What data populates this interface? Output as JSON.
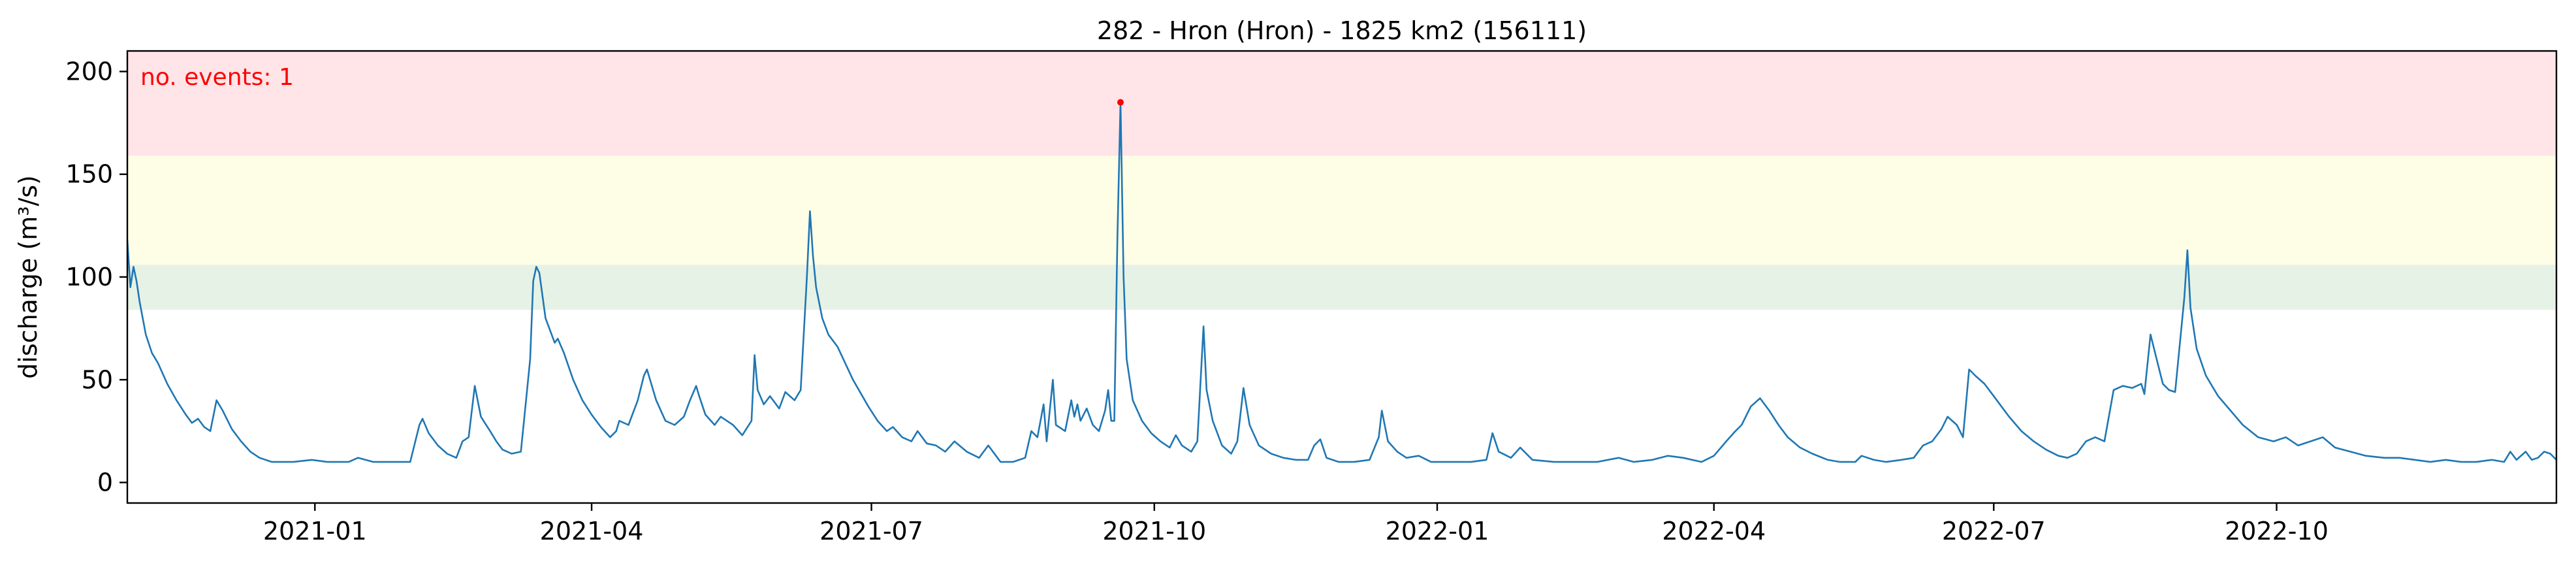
{
  "chart_data": {
    "type": "line",
    "title": "282 - Hron (Hron) - 1825 km2 (156111)",
    "xlabel": "",
    "ylabel": "discharge (m³/s)",
    "xlim": [
      "2020-11-01",
      "2022-12-31"
    ],
    "ylim": [
      -10,
      210
    ],
    "grid": false,
    "legend": "none",
    "x_ticks": [
      "2021-01",
      "2021-04",
      "2021-07",
      "2021-10",
      "2022-01",
      "2022-04",
      "2022-07",
      "2022-10"
    ],
    "y_ticks": [
      0,
      50,
      100,
      150,
      200
    ],
    "annotation": "no. events: 1",
    "threshold_bands": [
      {
        "from": 84,
        "to": 106,
        "color": "#e6f2e6"
      },
      {
        "from": 106,
        "to": 159,
        "color": "#fefee6"
      },
      {
        "from": 159,
        "to": 210,
        "color": "#ffe4e8"
      }
    ],
    "series": [
      {
        "color": "#1f77b4",
        "points": [
          [
            "2020-11-01",
            118
          ],
          [
            "2020-11-02",
            95
          ],
          [
            "2020-11-03",
            105
          ],
          [
            "2020-11-04",
            98
          ],
          [
            "2020-11-05",
            88
          ],
          [
            "2020-11-07",
            72
          ],
          [
            "2020-11-09",
            63
          ],
          [
            "2020-11-11",
            58
          ],
          [
            "2020-11-14",
            48
          ],
          [
            "2020-11-17",
            40
          ],
          [
            "2020-11-20",
            33
          ],
          [
            "2020-11-22",
            29
          ],
          [
            "2020-11-24",
            31
          ],
          [
            "2020-11-26",
            27
          ],
          [
            "2020-11-28",
            25
          ],
          [
            "2020-11-30",
            40
          ],
          [
            "2020-12-02",
            35
          ],
          [
            "2020-12-05",
            26
          ],
          [
            "2020-12-08",
            20
          ],
          [
            "2020-12-11",
            15
          ],
          [
            "2020-12-14",
            12
          ],
          [
            "2020-12-18",
            10
          ],
          [
            "2020-12-25",
            10
          ],
          [
            "2020-12-31",
            11
          ],
          [
            "2021-01-05",
            10
          ],
          [
            "2021-01-12",
            10
          ],
          [
            "2021-01-15",
            12
          ],
          [
            "2021-01-20",
            10
          ],
          [
            "2021-01-28",
            10
          ],
          [
            "2021-02-01",
            10
          ],
          [
            "2021-02-04",
            28
          ],
          [
            "2021-02-05",
            31
          ],
          [
            "2021-02-07",
            24
          ],
          [
            "2021-02-10",
            18
          ],
          [
            "2021-02-13",
            14
          ],
          [
            "2021-02-16",
            12
          ],
          [
            "2021-02-18",
            20
          ],
          [
            "2021-02-20",
            22
          ],
          [
            "2021-02-22",
            47
          ],
          [
            "2021-02-24",
            32
          ],
          [
            "2021-02-27",
            25
          ],
          [
            "2021-03-01",
            20
          ],
          [
            "2021-03-03",
            16
          ],
          [
            "2021-03-06",
            14
          ],
          [
            "2021-03-09",
            15
          ],
          [
            "2021-03-11",
            45
          ],
          [
            "2021-03-12",
            60
          ],
          [
            "2021-03-13",
            98
          ],
          [
            "2021-03-14",
            105
          ],
          [
            "2021-03-15",
            102
          ],
          [
            "2021-03-17",
            80
          ],
          [
            "2021-03-20",
            68
          ],
          [
            "2021-03-21",
            70
          ],
          [
            "2021-03-23",
            63
          ],
          [
            "2021-03-26",
            50
          ],
          [
            "2021-03-29",
            40
          ],
          [
            "2021-04-01",
            33
          ],
          [
            "2021-04-04",
            27
          ],
          [
            "2021-04-07",
            22
          ],
          [
            "2021-04-09",
            25
          ],
          [
            "2021-04-10",
            30
          ],
          [
            "2021-04-13",
            28
          ],
          [
            "2021-04-16",
            40
          ],
          [
            "2021-04-18",
            52
          ],
          [
            "2021-04-19",
            55
          ],
          [
            "2021-04-22",
            40
          ],
          [
            "2021-04-25",
            30
          ],
          [
            "2021-04-28",
            28
          ],
          [
            "2021-05-01",
            32
          ],
          [
            "2021-05-03",
            40
          ],
          [
            "2021-05-05",
            47
          ],
          [
            "2021-05-06",
            42
          ],
          [
            "2021-05-08",
            33
          ],
          [
            "2021-05-11",
            28
          ],
          [
            "2021-05-13",
            32
          ],
          [
            "2021-05-15",
            30
          ],
          [
            "2021-05-17",
            28
          ],
          [
            "2021-05-20",
            23
          ],
          [
            "2021-05-23",
            30
          ],
          [
            "2021-05-24",
            62
          ],
          [
            "2021-05-25",
            45
          ],
          [
            "2021-05-27",
            38
          ],
          [
            "2021-05-29",
            42
          ],
          [
            "2021-06-01",
            36
          ],
          [
            "2021-06-03",
            44
          ],
          [
            "2021-06-06",
            40
          ],
          [
            "2021-06-08",
            45
          ],
          [
            "2021-06-10",
            100
          ],
          [
            "2021-06-11",
            132
          ],
          [
            "2021-06-12",
            110
          ],
          [
            "2021-06-13",
            95
          ],
          [
            "2021-06-15",
            80
          ],
          [
            "2021-06-17",
            72
          ],
          [
            "2021-06-20",
            66
          ],
          [
            "2021-06-25",
            50
          ],
          [
            "2021-06-30",
            37
          ],
          [
            "2021-07-03",
            30
          ],
          [
            "2021-07-06",
            25
          ],
          [
            "2021-07-08",
            27
          ],
          [
            "2021-07-11",
            22
          ],
          [
            "2021-07-14",
            20
          ],
          [
            "2021-07-16",
            25
          ],
          [
            "2021-07-19",
            19
          ],
          [
            "2021-07-22",
            18
          ],
          [
            "2021-07-25",
            15
          ],
          [
            "2021-07-28",
            20
          ],
          [
            "2021-08-01",
            15
          ],
          [
            "2021-08-05",
            12
          ],
          [
            "2021-08-08",
            18
          ],
          [
            "2021-08-12",
            10
          ],
          [
            "2021-08-16",
            10
          ],
          [
            "2021-08-20",
            12
          ],
          [
            "2021-08-22",
            25
          ],
          [
            "2021-08-24",
            22
          ],
          [
            "2021-08-26",
            38
          ],
          [
            "2021-08-27",
            20
          ],
          [
            "2021-08-29",
            50
          ],
          [
            "2021-08-30",
            28
          ],
          [
            "2021-09-02",
            25
          ],
          [
            "2021-09-04",
            40
          ],
          [
            "2021-09-05",
            32
          ],
          [
            "2021-09-06",
            38
          ],
          [
            "2021-09-07",
            30
          ],
          [
            "2021-09-09",
            36
          ],
          [
            "2021-09-11",
            28
          ],
          [
            "2021-09-13",
            25
          ],
          [
            "2021-09-15",
            35
          ],
          [
            "2021-09-16",
            45
          ],
          [
            "2021-09-17",
            30
          ],
          [
            "2021-09-18",
            30
          ],
          [
            "2021-09-19",
            120
          ],
          [
            "2021-09-20",
            185
          ],
          [
            "2021-09-21",
            100
          ],
          [
            "2021-09-22",
            60
          ],
          [
            "2021-09-24",
            40
          ],
          [
            "2021-09-27",
            30
          ],
          [
            "2021-09-30",
            24
          ],
          [
            "2021-10-03",
            20
          ],
          [
            "2021-10-06",
            17
          ],
          [
            "2021-10-08",
            23
          ],
          [
            "2021-10-10",
            18
          ],
          [
            "2021-10-13",
            15
          ],
          [
            "2021-10-15",
            20
          ],
          [
            "2021-10-17",
            76
          ],
          [
            "2021-10-18",
            45
          ],
          [
            "2021-10-20",
            30
          ],
          [
            "2021-10-23",
            18
          ],
          [
            "2021-10-26",
            14
          ],
          [
            "2021-10-28",
            20
          ],
          [
            "2021-10-30",
            46
          ],
          [
            "2021-11-01",
            28
          ],
          [
            "2021-11-04",
            18
          ],
          [
            "2021-11-08",
            14
          ],
          [
            "2021-11-12",
            12
          ],
          [
            "2021-11-16",
            11
          ],
          [
            "2021-11-20",
            11
          ],
          [
            "2021-11-22",
            18
          ],
          [
            "2021-11-24",
            21
          ],
          [
            "2021-11-26",
            12
          ],
          [
            "2021-11-30",
            10
          ],
          [
            "2021-12-05",
            10
          ],
          [
            "2021-12-10",
            11
          ],
          [
            "2021-12-13",
            22
          ],
          [
            "2021-12-14",
            35
          ],
          [
            "2021-12-16",
            20
          ],
          [
            "2021-12-19",
            15
          ],
          [
            "2021-12-22",
            12
          ],
          [
            "2021-12-26",
            13
          ],
          [
            "2021-12-30",
            10
          ],
          [
            "2022-01-05",
            10
          ],
          [
            "2022-01-12",
            10
          ],
          [
            "2022-01-17",
            11
          ],
          [
            "2022-01-19",
            24
          ],
          [
            "2022-01-21",
            15
          ],
          [
            "2022-01-25",
            12
          ],
          [
            "2022-01-28",
            17
          ],
          [
            "2022-02-01",
            11
          ],
          [
            "2022-02-08",
            10
          ],
          [
            "2022-02-15",
            10
          ],
          [
            "2022-02-22",
            10
          ],
          [
            "2022-03-01",
            12
          ],
          [
            "2022-03-06",
            10
          ],
          [
            "2022-03-12",
            11
          ],
          [
            "2022-03-17",
            13
          ],
          [
            "2022-03-22",
            12
          ],
          [
            "2022-03-28",
            10
          ],
          [
            "2022-04-01",
            13
          ],
          [
            "2022-04-05",
            20
          ],
          [
            "2022-04-08",
            25
          ],
          [
            "2022-04-10",
            28
          ],
          [
            "2022-04-13",
            37
          ],
          [
            "2022-04-16",
            41
          ],
          [
            "2022-04-19",
            35
          ],
          [
            "2022-04-22",
            28
          ],
          [
            "2022-04-25",
            22
          ],
          [
            "2022-04-29",
            17
          ],
          [
            "2022-05-03",
            14
          ],
          [
            "2022-05-08",
            11
          ],
          [
            "2022-05-12",
            10
          ],
          [
            "2022-05-17",
            10
          ],
          [
            "2022-05-19",
            13
          ],
          [
            "2022-05-23",
            11
          ],
          [
            "2022-05-27",
            10
          ],
          [
            "2022-06-01",
            11
          ],
          [
            "2022-06-05",
            12
          ],
          [
            "2022-06-08",
            18
          ],
          [
            "2022-06-11",
            20
          ],
          [
            "2022-06-14",
            26
          ],
          [
            "2022-06-16",
            32
          ],
          [
            "2022-06-19",
            28
          ],
          [
            "2022-06-21",
            22
          ],
          [
            "2022-06-23",
            55
          ],
          [
            "2022-06-25",
            52
          ],
          [
            "2022-06-28",
            48
          ],
          [
            "2022-07-02",
            40
          ],
          [
            "2022-07-06",
            32
          ],
          [
            "2022-07-10",
            25
          ],
          [
            "2022-07-14",
            20
          ],
          [
            "2022-07-18",
            16
          ],
          [
            "2022-07-22",
            13
          ],
          [
            "2022-07-25",
            12
          ],
          [
            "2022-07-28",
            14
          ],
          [
            "2022-07-31",
            20
          ],
          [
            "2022-08-03",
            22
          ],
          [
            "2022-08-06",
            20
          ],
          [
            "2022-08-09",
            45
          ],
          [
            "2022-08-12",
            47
          ],
          [
            "2022-08-15",
            46
          ],
          [
            "2022-08-18",
            48
          ],
          [
            "2022-08-19",
            43
          ],
          [
            "2022-08-21",
            72
          ],
          [
            "2022-08-23",
            60
          ],
          [
            "2022-08-25",
            48
          ],
          [
            "2022-08-27",
            45
          ],
          [
            "2022-08-29",
            44
          ],
          [
            "2022-09-01",
            90
          ],
          [
            "2022-09-02",
            113
          ],
          [
            "2022-09-03",
            85
          ],
          [
            "2022-09-05",
            65
          ],
          [
            "2022-09-08",
            52
          ],
          [
            "2022-09-12",
            42
          ],
          [
            "2022-09-16",
            35
          ],
          [
            "2022-09-20",
            28
          ],
          [
            "2022-09-25",
            22
          ],
          [
            "2022-09-30",
            20
          ],
          [
            "2022-10-04",
            22
          ],
          [
            "2022-10-08",
            18
          ],
          [
            "2022-10-12",
            20
          ],
          [
            "2022-10-16",
            22
          ],
          [
            "2022-10-20",
            17
          ],
          [
            "2022-10-25",
            15
          ],
          [
            "2022-10-30",
            13
          ],
          [
            "2022-11-05",
            12
          ],
          [
            "2022-11-10",
            12
          ],
          [
            "2022-11-15",
            11
          ],
          [
            "2022-11-20",
            10
          ],
          [
            "2022-11-25",
            11
          ],
          [
            "2022-11-30",
            10
          ],
          [
            "2022-12-05",
            10
          ],
          [
            "2022-12-10",
            11
          ],
          [
            "2022-12-14",
            10
          ],
          [
            "2022-12-16",
            15
          ],
          [
            "2022-12-18",
            11
          ],
          [
            "2022-12-21",
            15
          ],
          [
            "2022-12-23",
            11
          ],
          [
            "2022-12-25",
            12
          ],
          [
            "2022-12-27",
            15
          ],
          [
            "2022-12-29",
            14
          ],
          [
            "2022-12-31",
            11
          ]
        ]
      }
    ],
    "highlight_points": [
      {
        "x": "2021-09-20",
        "y": 185,
        "color": "#ff0000"
      }
    ]
  }
}
